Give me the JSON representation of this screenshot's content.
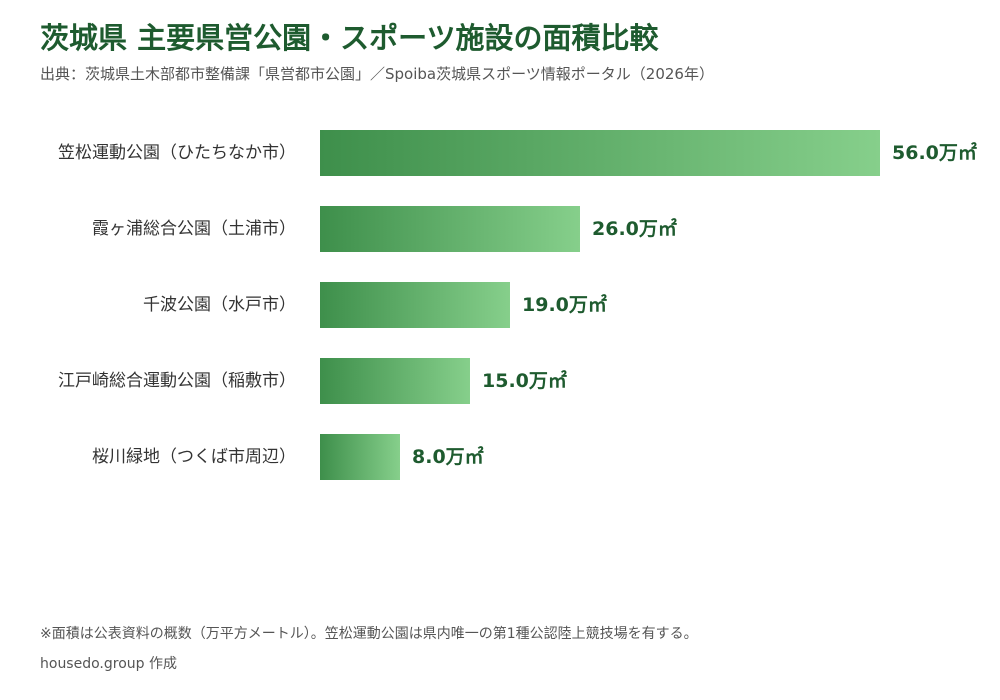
{
  "title": "茨城県 主要県営公園・スポーツ施設の面積比較",
  "subtitle": "出典：茨城県土木部都市整備課「県営都市公園」／Spoiba茨城県スポーツ情報ポータル（2026年）",
  "note": "※面積は公表資料の概数（万平方メートル）。笠松運動公園は県内唯一の第1種公認陸上競技場を有する。",
  "credit": "housedo.group 作成",
  "colors": {
    "title": "#1e5b2f",
    "bar_start": "#3e8f4b",
    "bar_end": "#86cf8b",
    "value_label": "#1e5b2f",
    "category_label": "#333333"
  },
  "chart_data": {
    "type": "bar",
    "orientation": "horizontal",
    "categories": [
      "笠松運動公園（ひたちなか市）",
      "霞ヶ浦総合公園（土浦市）",
      "千波公園（水戸市）",
      "江戸崎総合運動公園（稲敷市）",
      "桜川緑地（つくば市周辺）"
    ],
    "values": [
      56.0,
      26.0,
      19.0,
      15.0,
      8.0
    ],
    "value_labels": [
      "56.0万㎡",
      "26.0万㎡",
      "19.0万㎡",
      "15.0万㎡",
      "8.0万㎡"
    ],
    "unit": "万㎡",
    "xlim": [
      0,
      56
    ],
    "grid": false,
    "legend": "none"
  }
}
